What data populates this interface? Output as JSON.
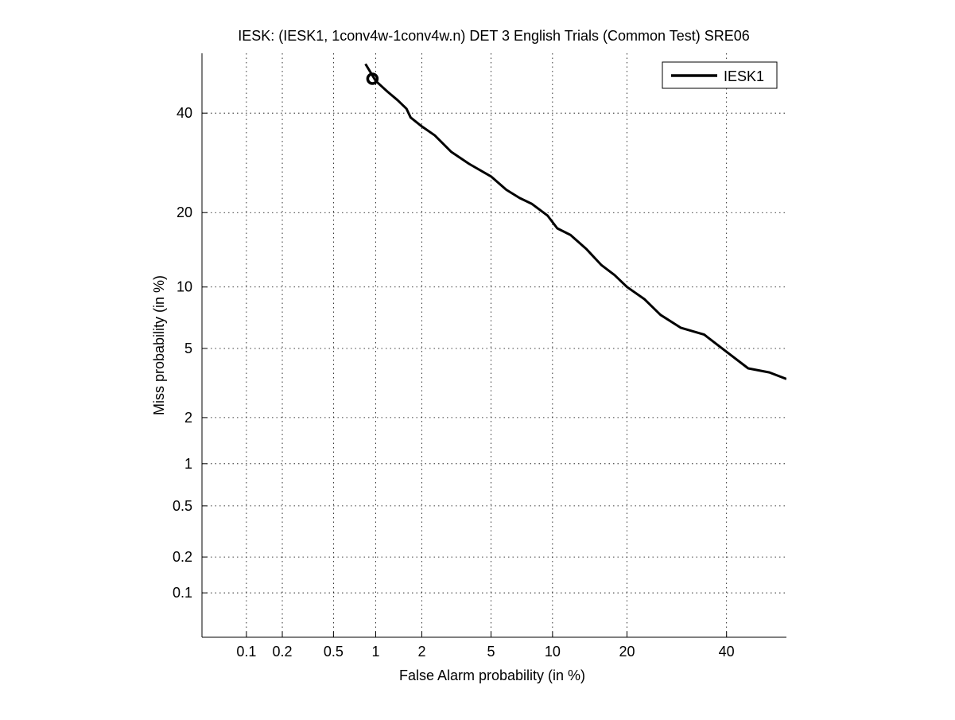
{
  "chart_data": {
    "type": "line",
    "title": "IESK: (IESK1, 1conv4w-1conv4w.n) DET 3 English Trials (Common Test) SRE06",
    "xlabel": "False Alarm probability (in %)",
    "ylabel": "Miss probability (in %)",
    "x_scale": "normal-deviate (probit)",
    "y_scale": "normal-deviate (probit)",
    "xlim": [
      0.04,
      54
    ],
    "ylim": [
      0.04,
      54
    ],
    "x_ticks": [
      0.1,
      0.2,
      0.5,
      1,
      2,
      5,
      10,
      20,
      40
    ],
    "x_tick_labels": [
      "0.1",
      "0.2",
      "0.5",
      "1",
      "2",
      "5",
      "10",
      "20",
      "40"
    ],
    "y_ticks": [
      0.1,
      0.2,
      0.5,
      1,
      2,
      5,
      10,
      20,
      40
    ],
    "y_tick_labels": [
      "0.1",
      "0.2",
      "0.5",
      "1",
      "2",
      "5",
      "10",
      "20",
      "40"
    ],
    "grid": true,
    "legend_position": "top-right",
    "series": [
      {
        "name": "IESK1",
        "color": "#000000",
        "x": [
          0.85,
          1.0,
          1.2,
          1.4,
          1.6,
          1.7,
          2.0,
          2.4,
          3.0,
          3.8,
          5.0,
          6.0,
          7.0,
          8.0,
          9.5,
          10.5,
          12.0,
          14.0,
          16.0,
          18.0,
          20.0,
          23.0,
          26.0,
          30.0,
          35.0,
          40.0,
          45.0,
          50.0,
          54.0
        ],
        "y": [
          51.5,
          47.5,
          45.0,
          43.0,
          41.0,
          39.0,
          37.0,
          35.0,
          31.5,
          29.0,
          26.5,
          24.0,
          22.5,
          21.5,
          19.5,
          17.5,
          16.5,
          14.5,
          12.5,
          11.3,
          10.0,
          8.8,
          7.4,
          6.4,
          5.9,
          4.8,
          3.9,
          3.7,
          3.4
        ]
      }
    ],
    "markers": [
      {
        "series": "IESK1",
        "x": 0.95,
        "y": 48.0,
        "shape": "circle"
      }
    ]
  }
}
